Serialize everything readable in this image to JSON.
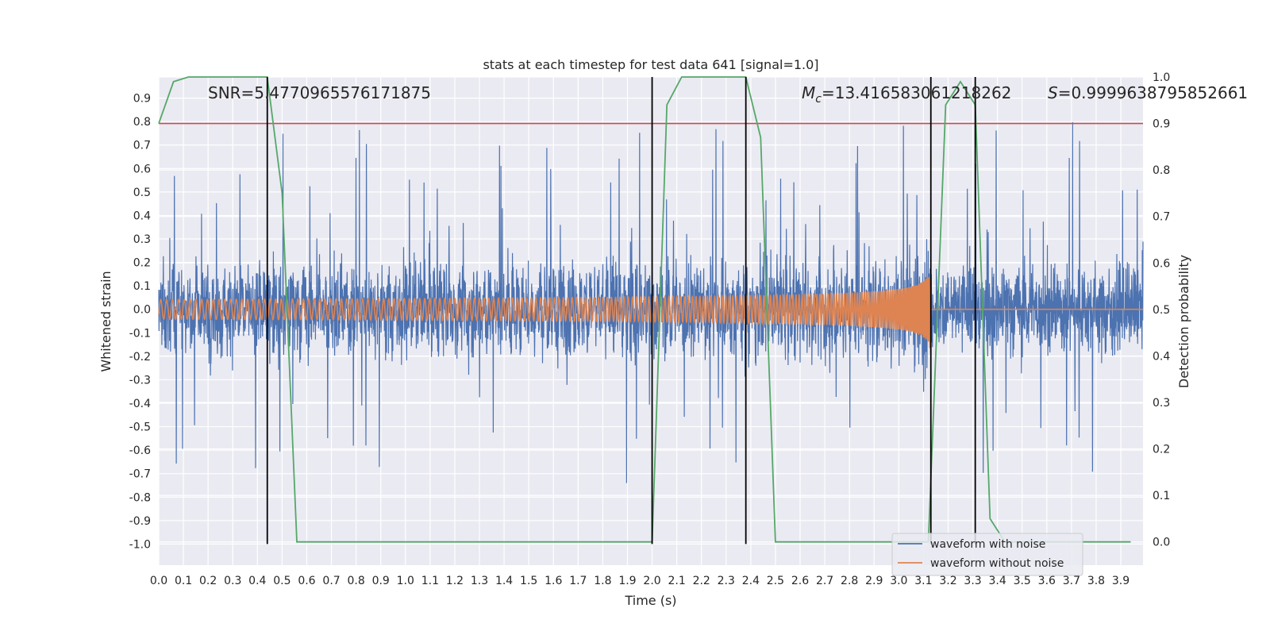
{
  "chart_data": {
    "type": "line",
    "title": "stats at each timestep for test data 641 [signal=1.0]",
    "xlabel": "Time (s)",
    "ylabel": "Whitened strain",
    "y2label": "Detection probability",
    "xlim": [
      0.0,
      3.99
    ],
    "ylim": [
      -1.09,
      0.99
    ],
    "y2lim": [
      -0.05,
      1.0
    ],
    "x_ticks": [
      "0.0",
      "0.1",
      "0.2",
      "0.3",
      "0.4",
      "0.5",
      "0.6",
      "0.7",
      "0.8",
      "0.9",
      "1.0",
      "1.1",
      "1.2",
      "1.3",
      "1.4",
      "1.5",
      "1.6",
      "1.7",
      "1.8",
      "1.9",
      "2.0",
      "2.1",
      "2.2",
      "2.3",
      "2.4",
      "2.5",
      "2.6",
      "2.7",
      "2.8",
      "2.9",
      "3.0",
      "3.1",
      "3.2",
      "3.3",
      "3.4",
      "3.5",
      "3.6",
      "3.7",
      "3.8",
      "3.9"
    ],
    "y_ticks": [
      "0.9",
      "0.8",
      "0.7",
      "0.6",
      "0.5",
      "0.4",
      "0.3",
      "0.2",
      "0.1",
      "0.0",
      "-0.1",
      "-0.2",
      "-0.3",
      "-0.4",
      "-0.5",
      "-0.6",
      "-0.7",
      "-0.8",
      "-0.9",
      "-1.0"
    ],
    "y2_ticks": [
      "1.0",
      "0.9",
      "0.8",
      "0.7",
      "0.6",
      "0.5",
      "0.4",
      "0.3",
      "0.2",
      "0.1",
      "0.0"
    ],
    "annotations": {
      "snr": "SNR=5.4770965576171875",
      "mc_symbol": "M",
      "mc_sub": "c",
      "mc_value": "=13.416583061218262",
      "s_symbol": "S",
      "s_value": "=0.9999638795852661"
    },
    "threshold_y2": 0.9,
    "vertical_lines_x": [
      0.44,
      2.0,
      2.38,
      3.13,
      3.31
    ],
    "vertical_lines_ymin": -1.0,
    "vertical_lines_ymax_y2": 1.0,
    "series": [
      {
        "name": "waveform with noise",
        "color": "#4c72b0",
        "noise_amplitude": 0.3,
        "spike_min": -1.0,
        "spike_max": 0.9
      },
      {
        "name": "waveform without noise",
        "color": "#dd8452",
        "chirp_end_time": 3.13,
        "chirp_peak_amplitude": 0.19
      },
      {
        "name": "detection probability",
        "color": "#55a868",
        "axis": "y2",
        "x": [
          0.0,
          0.06,
          0.12,
          0.2,
          0.3,
          0.44,
          0.5,
          0.56,
          0.7,
          1.0,
          1.5,
          1.99,
          2.0,
          2.06,
          2.12,
          2.2,
          2.3,
          2.38,
          2.44,
          2.5,
          2.6,
          2.8,
          3.0,
          3.1,
          3.12,
          3.19,
          3.25,
          3.31,
          3.37,
          3.43,
          3.6,
          3.8,
          3.94
        ],
        "values": [
          0.9,
          0.99,
          1.0,
          1.0,
          1.0,
          1.0,
          0.75,
          0.0,
          0.0,
          0.0,
          0.0,
          0.0,
          0.0,
          0.94,
          1.0,
          1.0,
          1.0,
          1.0,
          0.87,
          0.0,
          0.0,
          0.0,
          0.0,
          0.0,
          0.0,
          0.94,
          0.99,
          0.94,
          0.05,
          0.0,
          0.0,
          0.0,
          0.0
        ]
      }
    ],
    "threshold_color": "#c44e52",
    "legend": {
      "position": "lower-right",
      "entries": [
        "waveform with noise",
        "waveform without noise"
      ]
    }
  }
}
